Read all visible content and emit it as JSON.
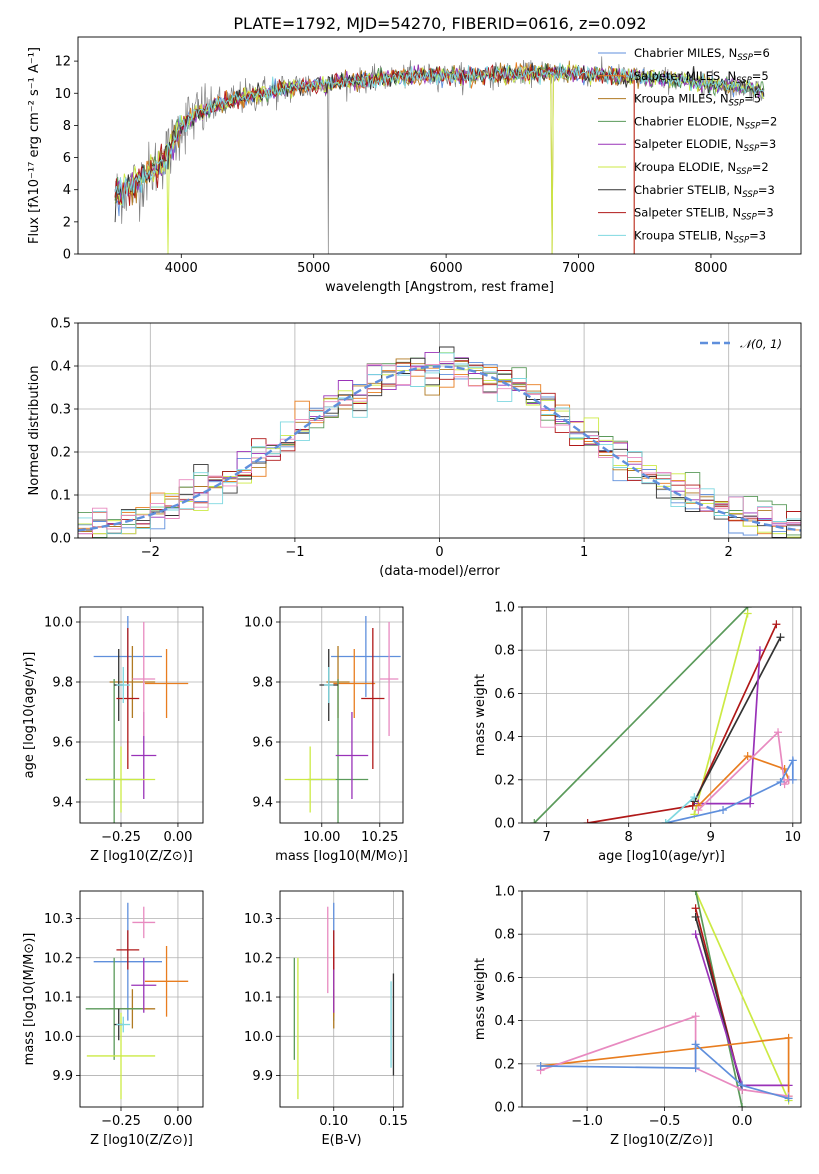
{
  "figure": {
    "title": "PLATE=1792, MJD=54270, FIBERID=0616, z=0.092"
  },
  "colors": {
    "cm": "#5f8fdc",
    "sm": "#e87d1f",
    "km": "#b07a22",
    "ce": "#5a9a5a",
    "se": "#9932b8",
    "ke": "#ccea44",
    "cs": "#333333",
    "ss": "#b01818",
    "ks": "#7fd8e0",
    "pink": "#e88ac0",
    "obs": "#808080",
    "gauss": "#5f8fdc"
  },
  "chart_data": [
    {
      "id": "spectrum",
      "type": "line",
      "xlabel": "wavelength [Angstrom, rest frame]",
      "ylabel": "Flux [fλ10⁻¹⁷ erg cm⁻² s⁻¹ A⁻¹]",
      "xlim": [
        3220,
        8680
      ],
      "ylim": [
        0,
        13.5
      ],
      "xticks": [
        4000,
        5000,
        6000,
        7000,
        8000
      ],
      "yticks": [
        0,
        2,
        4,
        6,
        8,
        10,
        12
      ],
      "grid": false,
      "legend_position": "right",
      "continuum": {
        "x": [
          3500,
          3700,
          3800,
          3900,
          4000,
          4100,
          4200,
          4400,
          4600,
          4800,
          5000,
          5200,
          5500,
          5800,
          6000,
          6300,
          6500,
          6800,
          7000,
          7200,
          7400,
          7600,
          7800,
          8000,
          8200,
          8400
        ],
        "y": [
          3.6,
          4.6,
          5.4,
          6.3,
          8.0,
          8.6,
          9.0,
          9.6,
          10.0,
          10.3,
          10.5,
          10.7,
          10.9,
          11.1,
          11.1,
          11.1,
          11.2,
          11.3,
          11.2,
          11.1,
          11.0,
          10.9,
          10.8,
          10.6,
          10.4,
          10.2
        ]
      },
      "legend": [
        {
          "label": "Chabrier MILES, N",
          "sub": "SSP",
          "suffix": "=6",
          "color_key": "cm"
        },
        {
          "label": "Salpeter MILES, N",
          "sub": "SSP",
          "suffix": "=5",
          "color_key": "sm"
        },
        {
          "label": "Kroupa MILES, N",
          "sub": "SSP",
          "suffix": "=5",
          "color_key": "km"
        },
        {
          "label": "Chabrier ELODIE, N",
          "sub": "SSP",
          "suffix": "=2",
          "color_key": "ce"
        },
        {
          "label": "Salpeter ELODIE, N",
          "sub": "SSP",
          "suffix": "=3",
          "color_key": "se"
        },
        {
          "label": "Kroupa ELODIE, N",
          "sub": "SSP",
          "suffix": "=2",
          "color_key": "ke"
        },
        {
          "label": "Chabrier STELIB, N",
          "sub": "SSP",
          "suffix": "=3",
          "color_key": "cs"
        },
        {
          "label": "Salpeter STELIB, N",
          "sub": "SSP",
          "suffix": "=3",
          "color_key": "ss"
        },
        {
          "label": "Kroupa STELIB, N",
          "sub": "SSP",
          "suffix": "=3",
          "color_key": "ks"
        }
      ]
    },
    {
      "id": "residuals",
      "type": "line",
      "xlabel": "(data-model)/error",
      "ylabel": "Normed distribution",
      "xlim": [
        -2.5,
        2.5
      ],
      "ylim": [
        0,
        0.5
      ],
      "xticks": [
        -2,
        -1,
        0,
        1,
        2
      ],
      "xtick_labels": [
        "−2",
        "−1",
        "0",
        "1",
        "2"
      ],
      "yticks": [
        0.0,
        0.1,
        0.2,
        0.3,
        0.4,
        0.5
      ],
      "ytick_labels": [
        "0.0",
        "0.1",
        "0.2",
        "0.3",
        "0.4",
        "0.5"
      ],
      "grid": true,
      "legend_position": "top-right",
      "legend_label": "𝒩(0, 1)",
      "bin_width": 0.1,
      "gaussian": {
        "mean": 0,
        "sigma": 1
      }
    },
    {
      "id": "age-vs-Z",
      "type": "scatter",
      "xlabel": "Z [log10(Z/Z⊙)]",
      "ylabel": "age  [log10(age/yr)]",
      "xlim": [
        -0.43,
        0.11
      ],
      "ylim": [
        9.33,
        10.05
      ],
      "xticks": [
        -0.25,
        0.0
      ],
      "xtick_labels": [
        "−0.25",
        "0.00"
      ],
      "yticks": [
        9.4,
        9.6,
        9.8,
        10.0
      ],
      "ytick_labels": [
        "9.4",
        "9.6",
        "9.8",
        "10.0"
      ],
      "grid": true,
      "points": [
        {
          "x": -0.22,
          "xerr": 0.15,
          "y": 9.885,
          "yerr": 0.135,
          "color_key": "cm"
        },
        {
          "x": -0.05,
          "xerr": 0.095,
          "y": 9.795,
          "yerr": 0.115,
          "color_key": "sm"
        },
        {
          "x": -0.2,
          "xerr": 0.1,
          "y": 9.8,
          "yerr": 0.12,
          "color_key": "km"
        },
        {
          "x": -0.28,
          "xerr": 0.125,
          "y": 9.475,
          "yerr": 0.335,
          "color_key": "ce"
        },
        {
          "x": -0.15,
          "xerr": 0.055,
          "y": 9.555,
          "yerr": 0.145,
          "color_key": "se"
        },
        {
          "x": -0.25,
          "xerr": 0.15,
          "y": 9.475,
          "yerr": 0.11,
          "color_key": "ke"
        },
        {
          "x": -0.26,
          "xerr": 0.02,
          "y": 9.79,
          "yerr": 0.12,
          "color_key": "cs"
        },
        {
          "x": -0.22,
          "xerr": 0.05,
          "y": 9.745,
          "yerr": 0.235,
          "color_key": "ss"
        },
        {
          "x": -0.24,
          "xerr": 0.03,
          "y": 9.79,
          "yerr": 0.06,
          "color_key": "ks"
        },
        {
          "x": -0.15,
          "xerr": 0.05,
          "y": 9.81,
          "yerr": 0.19,
          "color_key": "pink"
        }
      ]
    },
    {
      "id": "age-vs-mass",
      "type": "scatter",
      "xlabel": "mass [log10(M/M⊙)]",
      "ylabel": "",
      "xlim": [
        9.82,
        10.35
      ],
      "ylim": [
        9.33,
        10.05
      ],
      "xticks": [
        10.0,
        10.25
      ],
      "xtick_labels": [
        "10.00",
        "10.25"
      ],
      "yticks": [
        9.4,
        9.6,
        9.8,
        10.0
      ],
      "ytick_labels": [
        "9.4",
        "9.6",
        "9.8",
        "10.0"
      ],
      "grid": true,
      "points": [
        {
          "x": 10.19,
          "xerr": 0.15,
          "y": 9.885,
          "yerr": 0.135,
          "color_key": "cm"
        },
        {
          "x": 10.14,
          "xerr": 0.09,
          "y": 9.795,
          "yerr": 0.115,
          "color_key": "sm"
        },
        {
          "x": 10.07,
          "xerr": 0.05,
          "y": 9.8,
          "yerr": 0.12,
          "color_key": "km"
        },
        {
          "x": 10.07,
          "xerr": 0.13,
          "y": 9.475,
          "yerr": 0.335,
          "color_key": "ce"
        },
        {
          "x": 10.13,
          "xerr": 0.07,
          "y": 9.555,
          "yerr": 0.145,
          "color_key": "se"
        },
        {
          "x": 9.95,
          "xerr": 0.11,
          "y": 9.475,
          "yerr": 0.11,
          "color_key": "ke"
        },
        {
          "x": 10.03,
          "xerr": 0.04,
          "y": 9.79,
          "yerr": 0.12,
          "color_key": "cs"
        },
        {
          "x": 10.22,
          "xerr": 0.05,
          "y": 9.745,
          "yerr": 0.235,
          "color_key": "ss"
        },
        {
          "x": 10.03,
          "xerr": 0.02,
          "y": 9.79,
          "yerr": 0.06,
          "color_key": "ks"
        },
        {
          "x": 10.29,
          "xerr": 0.04,
          "y": 9.81,
          "yerr": 0.19,
          "color_key": "pink"
        }
      ]
    },
    {
      "id": "weight-vs-age",
      "type": "line",
      "xlabel": "age  [log10(age/yr)]",
      "ylabel": "mass weight",
      "xlim": [
        6.7,
        10.1
      ],
      "ylim": [
        0,
        1.0
      ],
      "xticks": [
        7,
        8,
        9,
        10
      ],
      "xtick_labels": [
        "7",
        "8",
        "9",
        "10"
      ],
      "yticks": [
        0.0,
        0.2,
        0.4,
        0.6,
        0.8,
        1.0
      ],
      "ytick_labels": [
        "0.0",
        "0.2",
        "0.4",
        "0.6",
        "0.8",
        "1.0"
      ],
      "grid": true,
      "series": [
        {
          "color_key": "ce",
          "x": [
            6.85,
            9.45
          ],
          "y": [
            0.0,
            1.0
          ]
        },
        {
          "color_key": "ke",
          "x": [
            8.8,
            9.45
          ],
          "y": [
            0.04,
            0.97
          ]
        },
        {
          "color_key": "ss",
          "x": [
            7.5,
            8.78,
            9.8
          ],
          "y": [
            0.0,
            0.08,
            0.92
          ]
        },
        {
          "color_key": "cs",
          "x": [
            8.8,
            9.85
          ],
          "y": [
            0.1,
            0.86
          ]
        },
        {
          "color_key": "se",
          "x": [
            8.85,
            9.48,
            9.6
          ],
          "y": [
            0.09,
            0.09,
            0.8
          ]
        },
        {
          "color_key": "sm",
          "x": [
            8.85,
            9.45,
            9.9,
            9.95
          ],
          "y": [
            0.08,
            0.31,
            0.25,
            0.2
          ]
        },
        {
          "color_key": "pink",
          "x": [
            8.85,
            9.82,
            9.9,
            9.95
          ],
          "y": [
            0.06,
            0.42,
            0.18,
            0.2
          ]
        },
        {
          "color_key": "cm",
          "x": [
            8.45,
            9.15,
            9.85,
            10.0,
            10.0
          ],
          "y": [
            0.0,
            0.06,
            0.19,
            0.29,
            0.2
          ]
        },
        {
          "color_key": "ks",
          "x": [
            8.45,
            8.8
          ],
          "y": [
            0.0,
            0.12
          ]
        }
      ]
    },
    {
      "id": "mass-vs-Z",
      "type": "scatter",
      "xlabel": "Z [log10(Z/Z⊙)]",
      "ylabel": "mass [log10(M/M⊙)]",
      "xlim": [
        -0.43,
        0.11
      ],
      "ylim": [
        9.82,
        10.37
      ],
      "xticks": [
        -0.25,
        0.0
      ],
      "xtick_labels": [
        "−0.25",
        "0.00"
      ],
      "yticks": [
        9.9,
        10.0,
        10.1,
        10.2,
        10.3
      ],
      "ytick_labels": [
        "9.9",
        "10.0",
        "10.1",
        "10.2",
        "10.3"
      ],
      "grid": true,
      "points": [
        {
          "x": -0.22,
          "xerr": 0.15,
          "y": 10.19,
          "yerr": 0.15,
          "color_key": "cm"
        },
        {
          "x": -0.05,
          "xerr": 0.095,
          "y": 10.14,
          "yerr": 0.09,
          "color_key": "sm"
        },
        {
          "x": -0.2,
          "xerr": 0.1,
          "y": 10.07,
          "yerr": 0.05,
          "color_key": "km"
        },
        {
          "x": -0.28,
          "xerr": 0.125,
          "y": 10.07,
          "yerr": 0.13,
          "color_key": "ce"
        },
        {
          "x": -0.15,
          "xerr": 0.055,
          "y": 10.13,
          "yerr": 0.07,
          "color_key": "se"
        },
        {
          "x": -0.25,
          "xerr": 0.15,
          "y": 9.95,
          "yerr": 0.11,
          "color_key": "ke"
        },
        {
          "x": -0.26,
          "xerr": 0.02,
          "y": 10.03,
          "yerr": 0.04,
          "color_key": "cs"
        },
        {
          "x": -0.22,
          "xerr": 0.05,
          "y": 10.22,
          "yerr": 0.05,
          "color_key": "ss"
        },
        {
          "x": -0.24,
          "xerr": 0.03,
          "y": 10.03,
          "yerr": 0.02,
          "color_key": "ks"
        },
        {
          "x": -0.15,
          "xerr": 0.05,
          "y": 10.29,
          "yerr": 0.04,
          "color_key": "pink"
        }
      ]
    },
    {
      "id": "mass-vs-ebv",
      "type": "scatter",
      "xlabel": "E(B-V)",
      "ylabel": "",
      "xlim": [
        0.055,
        0.158
      ],
      "ylim": [
        9.82,
        10.37
      ],
      "xticks": [
        0.1,
        0.15
      ],
      "xtick_labels": [
        "0.10",
        "0.15"
      ],
      "yticks": [
        9.9,
        10.0,
        10.1,
        10.2,
        10.3
      ],
      "ytick_labels": [
        "9.9",
        "10.0",
        "10.1",
        "10.2",
        "10.3"
      ],
      "grid": true,
      "points": [
        {
          "x": 0.1,
          "y": 10.19,
          "yerr": 0.15,
          "color_key": "cm"
        },
        {
          "x": 0.1,
          "y": 10.14,
          "yerr": 0.09,
          "color_key": "sm"
        },
        {
          "x": 0.1,
          "y": 10.07,
          "yerr": 0.05,
          "color_key": "km"
        },
        {
          "x": 0.067,
          "y": 10.07,
          "yerr": 0.13,
          "color_key": "ce"
        },
        {
          "x": 0.1,
          "y": 10.13,
          "yerr": 0.07,
          "color_key": "se"
        },
        {
          "x": 0.07,
          "y": 10.02,
          "yerr": 0.18,
          "color_key": "ke"
        },
        {
          "x": 0.15,
          "y": 10.03,
          "yerr": 0.13,
          "color_key": "cs"
        },
        {
          "x": 0.1,
          "y": 10.22,
          "yerr": 0.05,
          "color_key": "ss"
        },
        {
          "x": 0.148,
          "y": 10.03,
          "yerr": 0.11,
          "color_key": "ks"
        },
        {
          "x": 0.095,
          "y": 10.22,
          "yerr": 0.11,
          "color_key": "pink"
        }
      ]
    },
    {
      "id": "weight-vs-Z",
      "type": "line",
      "xlabel": "Z [log10(Z/Z⊙)]",
      "ylabel": "mass weight",
      "xlim": [
        -1.42,
        0.38
      ],
      "ylim": [
        0,
        1.0
      ],
      "xticks": [
        -1.0,
        -0.5,
        0.0
      ],
      "xtick_labels": [
        "−1.0",
        "−0.5",
        "0.0"
      ],
      "yticks": [
        0.0,
        0.2,
        0.4,
        0.6,
        0.8,
        1.0
      ],
      "ytick_labels": [
        "0.0",
        "0.2",
        "0.4",
        "0.6",
        "0.8",
        "1.0"
      ],
      "grid": true,
      "series": [
        {
          "color_key": "ke",
          "x": [
            -0.3,
            0.3
          ],
          "y": [
            1.0,
            0.03
          ]
        },
        {
          "color_key": "ce",
          "x": [
            -0.3,
            0.0
          ],
          "y": [
            1.0,
            0.0
          ]
        },
        {
          "color_key": "ss",
          "x": [
            -0.3,
            0.0
          ],
          "y": [
            0.92,
            0.08
          ]
        },
        {
          "color_key": "cs",
          "x": [
            -0.3,
            0.0
          ],
          "y": [
            0.88,
            0.08
          ]
        },
        {
          "color_key": "se",
          "x": [
            -0.3,
            0.0,
            0.3
          ],
          "y": [
            0.8,
            0.1,
            0.1
          ]
        },
        {
          "color_key": "sm",
          "x": [
            -1.3,
            0.3,
            0.3
          ],
          "y": [
            0.19,
            0.32,
            0.05
          ]
        },
        {
          "color_key": "pink",
          "x": [
            -1.3,
            -0.3,
            -0.3,
            0.0,
            0.3
          ],
          "y": [
            0.17,
            0.42,
            0.18,
            0.08,
            0.05
          ]
        },
        {
          "color_key": "cm",
          "x": [
            -1.3,
            -0.3,
            -0.3,
            0.0,
            0.3
          ],
          "y": [
            0.19,
            0.18,
            0.29,
            0.1,
            0.04
          ]
        }
      ]
    }
  ]
}
